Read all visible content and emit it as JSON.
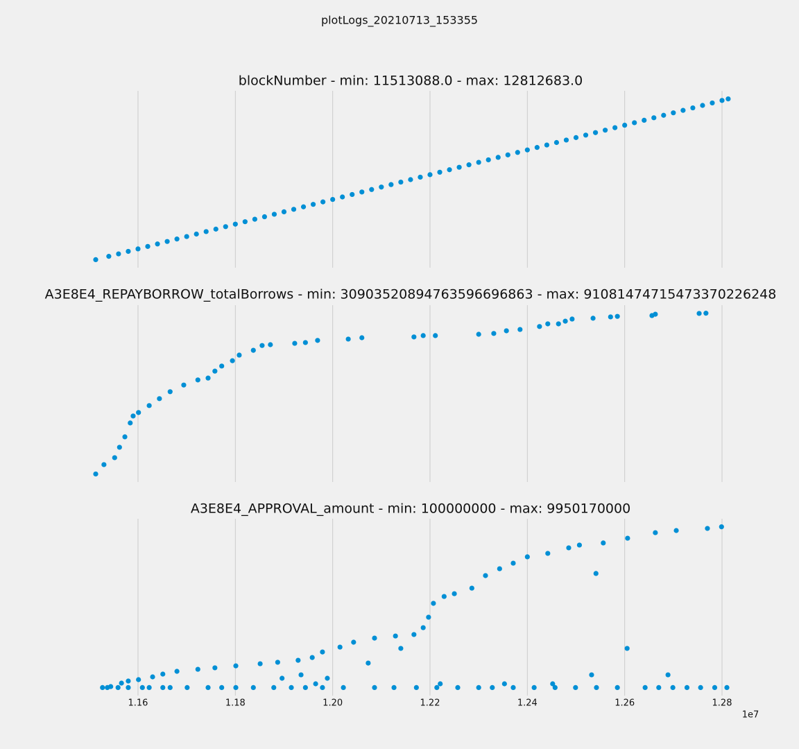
{
  "title": "plotLogs_20210713_153355",
  "chart_data": [
    {
      "type": "scatter",
      "title": "blockNumber - min: 11513088.0 - max: 12812683.0",
      "color": "#008fd5",
      "grid": true,
      "xlim": [
        11448108,
        12877663
      ],
      "ylim": [
        11448108,
        12877663
      ],
      "xticks": [
        11600000,
        11800000,
        12000000,
        12200000,
        12400000,
        12600000,
        12800000
      ],
      "x": [
        11513088,
        11540000,
        11560000,
        11580000,
        11600000,
        11620000,
        11640000,
        11660000,
        11680000,
        11700000,
        11720000,
        11740000,
        11760000,
        11780000,
        11800000,
        11820000,
        11840000,
        11860000,
        11880000,
        11900000,
        11920000,
        11940000,
        11960000,
        11980000,
        12000000,
        12020000,
        12040000,
        12060000,
        12080000,
        12100000,
        12120000,
        12140000,
        12160000,
        12180000,
        12200000,
        12220000,
        12240000,
        12260000,
        12280000,
        12300000,
        12320000,
        12340000,
        12360000,
        12380000,
        12400000,
        12420000,
        12440000,
        12460000,
        12480000,
        12500000,
        12520000,
        12540000,
        12560000,
        12580000,
        12600000,
        12620000,
        12640000,
        12660000,
        12680000,
        12700000,
        12720000,
        12740000,
        12760000,
        12780000,
        12800000,
        12812683
      ],
      "y": [
        11513088,
        11540000,
        11560000,
        11580000,
        11600000,
        11620000,
        11640000,
        11660000,
        11680000,
        11700000,
        11720000,
        11740000,
        11760000,
        11780000,
        11800000,
        11820000,
        11840000,
        11860000,
        11880000,
        11900000,
        11920000,
        11940000,
        11960000,
        11980000,
        12000000,
        12020000,
        12040000,
        12060000,
        12080000,
        12100000,
        12120000,
        12140000,
        12160000,
        12180000,
        12200000,
        12220000,
        12240000,
        12260000,
        12280000,
        12300000,
        12320000,
        12340000,
        12360000,
        12380000,
        12400000,
        12420000,
        12440000,
        12460000,
        12480000,
        12500000,
        12520000,
        12540000,
        12560000,
        12580000,
        12600000,
        12620000,
        12640000,
        12660000,
        12680000,
        12700000,
        12720000,
        12740000,
        12760000,
        12780000,
        12800000,
        12812683
      ]
    },
    {
      "type": "scatter",
      "title": "A3E8E4_REPAYBORROW_totalBorrows - min: 30903520894763596696863 - max: 91081474715473370226248",
      "color": "#008fd5",
      "grid": true,
      "xlim": [
        11448108,
        12877663
      ],
      "ylim": [
        2.79e+22,
        9.41e+22
      ],
      "xticks": [
        11600000,
        11800000,
        12000000,
        12200000,
        12400000,
        12600000,
        12800000
      ],
      "x": [
        11513088,
        11530000,
        11552000,
        11562000,
        11573000,
        11584000,
        11590000,
        11601000,
        11623000,
        11644000,
        11666000,
        11694000,
        11723000,
        11744000,
        11758000,
        11772000,
        11794000,
        11808000,
        11837000,
        11855000,
        11872000,
        11922000,
        11944000,
        11969000,
        12032000,
        12060000,
        12167000,
        12186000,
        12211000,
        12300000,
        12331000,
        12357000,
        12385000,
        12425000,
        12442000,
        12464000,
        12478000,
        12492000,
        12535000,
        12571000,
        12585000,
        12656000,
        12663000,
        12753000,
        12767000
      ],
      "y": [
        3.09e+22,
        3.44e+22,
        3.7e+22,
        4.09e+22,
        4.48e+22,
        5e+22,
        5.26e+22,
        5.39e+22,
        5.65e+22,
        5.91e+22,
        6.17e+22,
        6.42e+22,
        6.61e+22,
        6.68e+22,
        6.94e+22,
        7.13e+22,
        7.33e+22,
        7.54e+22,
        7.72e+22,
        7.9e+22,
        7.93e+22,
        7.98e+22,
        8.01e+22,
        8.09e+22,
        8.14e+22,
        8.19e+22,
        8.22e+22,
        8.27e+22,
        8.27e+22,
        8.32e+22,
        8.35e+22,
        8.45e+22,
        8.5e+22,
        8.61e+22,
        8.71e+22,
        8.71e+22,
        8.81e+22,
        8.89e+22,
        8.92e+22,
        8.97e+22,
        8.99e+22,
        9.02e+22,
        9.07e+22,
        9.1e+22,
        9.108e+22
      ]
    },
    {
      "type": "scatter",
      "title": "A3E8E4_APPROVAL_amount - min: 100000000 - max: 9950170000",
      "color": "#008fd5",
      "grid": true,
      "xlim": [
        11448108,
        12877663
      ],
      "ylim": [
        -392500000,
        10442700000
      ],
      "x_offset_label": "1e7",
      "xticks": [
        {
          "value": 11600000,
          "label": "1.16"
        },
        {
          "value": 11800000,
          "label": "1.18"
        },
        {
          "value": 12000000,
          "label": "1.20"
        },
        {
          "value": 12200000,
          "label": "1.22"
        },
        {
          "value": 12400000,
          "label": "1.24"
        },
        {
          "value": 12600000,
          "label": "1.26"
        },
        {
          "value": 12800000,
          "label": "1.28"
        }
      ],
      "x": [
        11527000,
        11537000,
        11559000,
        11580000,
        11609000,
        11623000,
        11651000,
        11666000,
        11701000,
        11744000,
        11772000,
        11801000,
        11837000,
        11879000,
        11915000,
        11944000,
        11979000,
        12022000,
        12086000,
        12126000,
        12172000,
        12214000,
        12257000,
        12300000,
        12328000,
        12371000,
        12414000,
        12457000,
        12499000,
        12542000,
        12585000,
        12642000,
        12670000,
        12699000,
        12728000,
        12756000,
        12785000,
        12810000,
        11544000,
        11566000,
        11580000,
        11601000,
        11630000,
        11651000,
        11680000,
        11723000,
        11758000,
        11801000,
        11851000,
        11887000,
        11929000,
        11958000,
        11979000,
        12015000,
        12043000,
        12086000,
        12129000,
        12167000,
        12186000,
        12197000,
        12207000,
        12229000,
        12250000,
        12286000,
        12314000,
        12343000,
        12371000,
        12400000,
        12442000,
        12485000,
        12507000,
        12556000,
        12606000,
        12663000,
        12706000,
        12770000,
        12799000,
        12140000,
        12073000,
        11896000,
        11935000,
        11989000,
        12541000,
        12605000,
        12532000,
        12689000,
        11965000,
        12221000,
        12353000,
        12452000
      ],
      "y": [
        100000000,
        100000000,
        100000000,
        100000000,
        100000000,
        100000000,
        100000000,
        100000000,
        100000000,
        100000000,
        100000000,
        100000000,
        100000000,
        100000000,
        100000000,
        100000000,
        100000000,
        100000000,
        100000000,
        100000000,
        100000000,
        100000000,
        100000000,
        100000000,
        100000000,
        100000000,
        100000000,
        100000000,
        100000000,
        100000000,
        100000000,
        100000000,
        100000000,
        100000000,
        100000000,
        100000000,
        100000000,
        100000000,
        160000000,
        373000000,
        500000000,
        585000000,
        755000000,
        925000000,
        1095000000,
        1220000000,
        1310000000,
        1430000000,
        1560000000,
        1650000000,
        1770000000,
        1940000000,
        2280000000,
        2580000000,
        2880000000,
        3130000000,
        3260000000,
        3350000000,
        3770000000,
        4410000000,
        5260000000,
        5680000000,
        5850000000,
        6190000000,
        6960000000,
        7380000000,
        7720000000,
        8110000000,
        8320000000,
        8660000000,
        8830000000,
        8960000000,
        9250000000,
        9590000000,
        9720000000,
        9850000000,
        9950170000,
        2500000000,
        1600000000,
        670000000,
        880000000,
        670000000,
        7090000000,
        2500000000,
        880000000,
        880000000,
        330000000,
        330000000,
        330000000,
        330000000
      ]
    }
  ]
}
